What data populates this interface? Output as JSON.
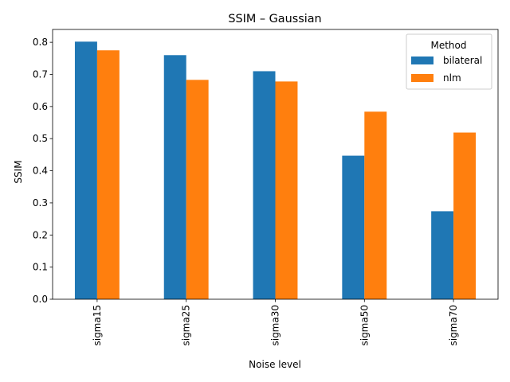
{
  "chart_data": {
    "type": "bar",
    "title": "SSIM – Gaussian",
    "xlabel": "Noise level",
    "ylabel": "SSIM",
    "categories": [
      "sigma15",
      "sigma25",
      "sigma30",
      "sigma50",
      "sigma70"
    ],
    "series": [
      {
        "name": "bilateral",
        "color": "#1f77b4",
        "values": [
          0.802,
          0.76,
          0.71,
          0.447,
          0.274
        ]
      },
      {
        "name": "nlm",
        "color": "#ff7f0e",
        "values": [
          0.775,
          0.683,
          0.678,
          0.584,
          0.519
        ]
      }
    ],
    "ylim": [
      0,
      0.84
    ],
    "yticks": [
      "0.0",
      "0.1",
      "0.2",
      "0.3",
      "0.4",
      "0.5",
      "0.6",
      "0.7",
      "0.8"
    ],
    "grid": false,
    "legend": {
      "title": "Method",
      "placement": "top-right"
    }
  }
}
